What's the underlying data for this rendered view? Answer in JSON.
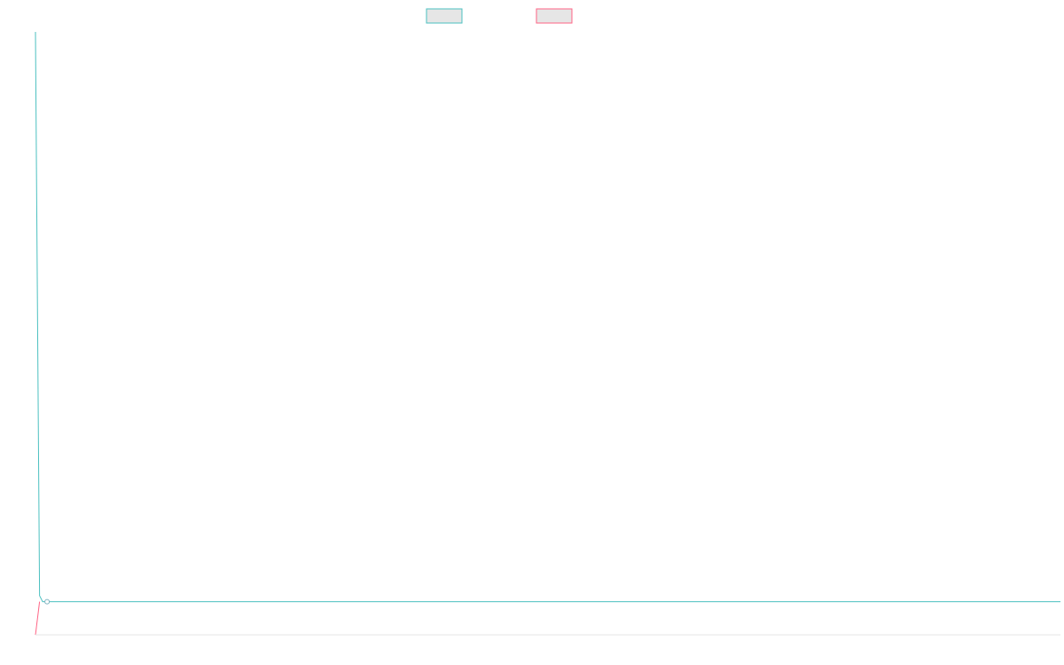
{
  "chart_data": {
    "type": "line",
    "title": "",
    "xlabel": "",
    "ylabel": "",
    "legend_placement": "top-center",
    "grid": false,
    "x_range": [
      0,
      100
    ],
    "y_range": [
      0,
      100
    ],
    "series": [
      {
        "color": "#4bc0c0",
        "legend_fill": "#e6e6e6",
        "point_style": "hollow-circle",
        "points": [
          {
            "x": 0,
            "y": 100
          },
          {
            "x": 0.4,
            "y": 6.5
          },
          {
            "x": 0.7,
            "y": 5.5
          },
          {
            "x": 100,
            "y": 5.5
          }
        ]
      },
      {
        "color": "#ff6384",
        "legend_fill": "#e6e6e6",
        "point_style": "none",
        "points": [
          {
            "x": 0,
            "y": 0
          },
          {
            "x": 0.4,
            "y": 5.5
          }
        ]
      }
    ]
  }
}
